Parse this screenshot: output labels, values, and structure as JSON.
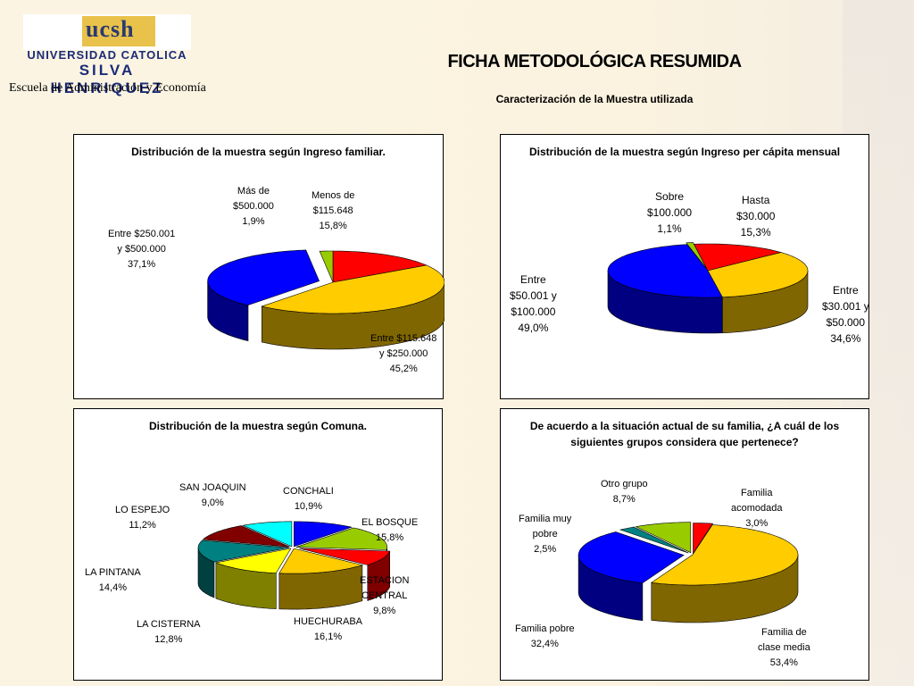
{
  "header": {
    "logo_mark": "ucsh",
    "logo_line1": "UNIVERSIDAD CATOLICA",
    "logo_line2": "SILVA HENRIQUEZ",
    "school": "Escuela de Administración y Economía",
    "title": "FICHA METODOLÓGICA RESUMIDA",
    "subtitle": "Caracterización de la Muestra utilizada"
  },
  "chart_data": [
    {
      "type": "pie",
      "title": "Distribución de la muestra según Ingreso familiar.",
      "slices": [
        {
          "label": [
            "Menos de",
            "$115.648",
            "15,8%"
          ],
          "value": 15.8,
          "color": "#ff0000"
        },
        {
          "label": [
            "Entre $115.648",
            "y $250.000",
            "45,2%"
          ],
          "value": 45.2,
          "color": "#ffcc00"
        },
        {
          "label": [
            "Entre $250.001",
            "y $500.000",
            "37,1%"
          ],
          "value": 37.1,
          "color": "#0000ff"
        },
        {
          "label": [
            "Más de",
            "$500.000",
            "1,9%"
          ],
          "value": 1.9,
          "color": "#99cc00"
        }
      ]
    },
    {
      "type": "pie",
      "title": "Distribución de la muestra según Ingreso per cápita mensual",
      "slices": [
        {
          "label": [
            "Hasta",
            "$30.000",
            "15,3%"
          ],
          "value": 15.3,
          "color": "#ff0000"
        },
        {
          "label": [
            "Entre",
            "$30.001 y",
            "$50.000",
            "34,6%"
          ],
          "value": 34.6,
          "color": "#ffcc00"
        },
        {
          "label": [
            "Entre",
            "$50.001 y",
            "$100.000",
            "49,0%"
          ],
          "value": 49.0,
          "color": "#0000ff"
        },
        {
          "label": [
            "Sobre",
            "$100.000",
            "1,1%"
          ],
          "value": 1.1,
          "color": "#99cc00"
        }
      ]
    },
    {
      "type": "pie",
      "title": "Distribución de la muestra según Comuna.",
      "slices": [
        {
          "label": [
            "CONCHALI",
            "10,9%"
          ],
          "value": 10.9,
          "color": "#0000ff"
        },
        {
          "label": [
            "EL BOSQUE",
            "15,8%"
          ],
          "value": 15.8,
          "color": "#99cc00"
        },
        {
          "label": [
            "ESTACION",
            "CENTRAL",
            "9,8%"
          ],
          "value": 9.8,
          "color": "#ff0000"
        },
        {
          "label": [
            "HUECHURABA",
            "16,1%"
          ],
          "value": 16.1,
          "color": "#ffcc00"
        },
        {
          "label": [
            "LA CISTERNA",
            "12,8%"
          ],
          "value": 12.8,
          "color": "#ffff00"
        },
        {
          "label": [
            "LA PINTANA",
            "14,4%"
          ],
          "value": 14.4,
          "color": "#008080"
        },
        {
          "label": [
            "LO ESPEJO",
            "11,2%"
          ],
          "value": 11.2,
          "color": "#800000"
        },
        {
          "label": [
            "SAN JOAQUIN",
            "9,0%"
          ],
          "value": 9.0,
          "color": "#00ffff"
        }
      ]
    },
    {
      "type": "pie",
      "title": "De acuerdo a la situación actual de su familia, ¿A cuál de los siguientes grupos considera que pertenece?",
      "slices": [
        {
          "label": [
            "Familia",
            "acomodada",
            "3,0%"
          ],
          "value": 3.0,
          "color": "#ff0000"
        },
        {
          "label": [
            "Familia de",
            "clase media",
            "53,4%"
          ],
          "value": 53.4,
          "color": "#ffcc00"
        },
        {
          "label": [
            "Familia pobre",
            "32,4%"
          ],
          "value": 32.4,
          "color": "#0000ff"
        },
        {
          "label": [
            "Familia muy",
            "pobre",
            "2,5%"
          ],
          "value": 2.5,
          "color": "#008080"
        },
        {
          "label": [
            "Otro grupo",
            "8,7%"
          ],
          "value": 8.7,
          "color": "#99cc00"
        }
      ]
    }
  ]
}
